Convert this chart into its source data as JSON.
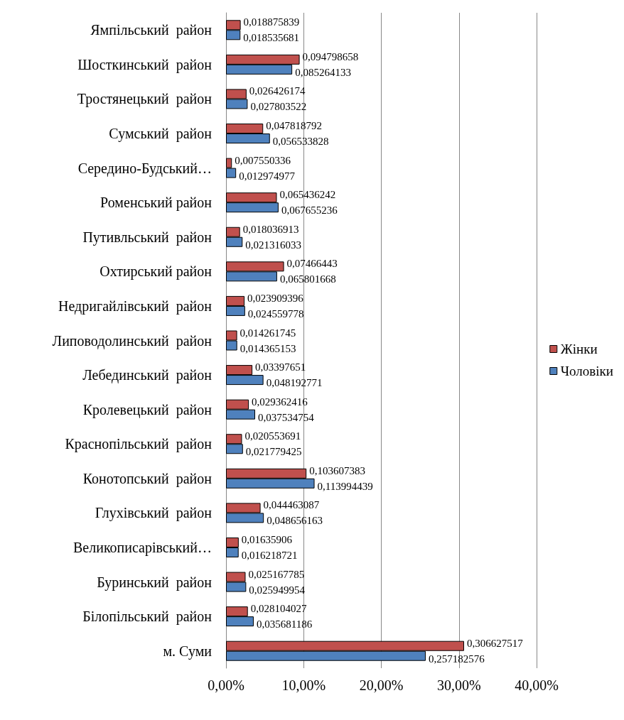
{
  "chart_data": {
    "type": "bar",
    "orientation": "horizontal",
    "categories": [
      "Ямпільський  район",
      "Шосткинський  район",
      "Тростянецький  район",
      "Сумський  район",
      "Середино-Будський…",
      "Роменський район",
      "Путивльський  район",
      "Охтирський район",
      "Недригайлівський  район",
      "Липоводолинський  район",
      "Лебединський  район",
      "Кролевецький  район",
      "Краснопільський  район",
      "Конотопський  район",
      "Глухівський  район",
      "Великописарівський…",
      "Буринський  район",
      "Білопільський  район",
      "м. Суми"
    ],
    "series": [
      {
        "name": "Жінки",
        "color": "#c0504d",
        "values": [
          0.018875839,
          0.094798658,
          0.026426174,
          0.047818792,
          0.007550336,
          0.065436242,
          0.018036913,
          0.07466443,
          0.023909396,
          0.014261745,
          0.03397651,
          0.029362416,
          0.020553691,
          0.103607383,
          0.044463087,
          0.01635906,
          0.025167785,
          0.028104027,
          0.306627517
        ],
        "value_labels": [
          "0,018875839",
          "0,094798658",
          "0,026426174",
          "0,047818792",
          "0,007550336",
          "0,065436242",
          "0,018036913",
          "0,07466443",
          "0,023909396",
          "0,014261745",
          "0,03397651",
          "0,029362416",
          "0,020553691",
          "0,103607383",
          "0,044463087",
          "0,01635906",
          "0,025167785",
          "0,028104027",
          "0,306627517"
        ]
      },
      {
        "name": "Чоловіки",
        "color": "#4f81bd",
        "values": [
          0.018535681,
          0.085264133,
          0.027803522,
          0.056533828,
          0.012974977,
          0.067655236,
          0.021316033,
          0.065801668,
          0.024559778,
          0.014365153,
          0.048192771,
          0.037534754,
          0.021779425,
          0.113994439,
          0.048656163,
          0.016218721,
          0.025949954,
          0.035681186,
          0.257182576
        ],
        "value_labels": [
          "0,018535681",
          "0,085264133",
          "0,027803522",
          "0,056533828",
          "0,012974977",
          "0,067655236",
          "0,021316033",
          "0,065801668",
          "0,024559778",
          "0,014365153",
          "0,048192771",
          "0,037534754",
          "0,021779425",
          "0,113994439",
          "0,048656163",
          "0,016218721",
          "0,025949954",
          "0,035681186",
          "0,257182576"
        ]
      }
    ],
    "xlim": [
      0,
      0.4
    ],
    "xticks": [
      {
        "value": 0,
        "label": "0,00%"
      },
      {
        "value": 0.1,
        "label": "10,00%"
      },
      {
        "value": 0.2,
        "label": "20,00%"
      },
      {
        "value": 0.3,
        "label": "30,00%"
      },
      {
        "value": 0.4,
        "label": "40,00%"
      }
    ],
    "grid": "x",
    "legend": "right"
  }
}
